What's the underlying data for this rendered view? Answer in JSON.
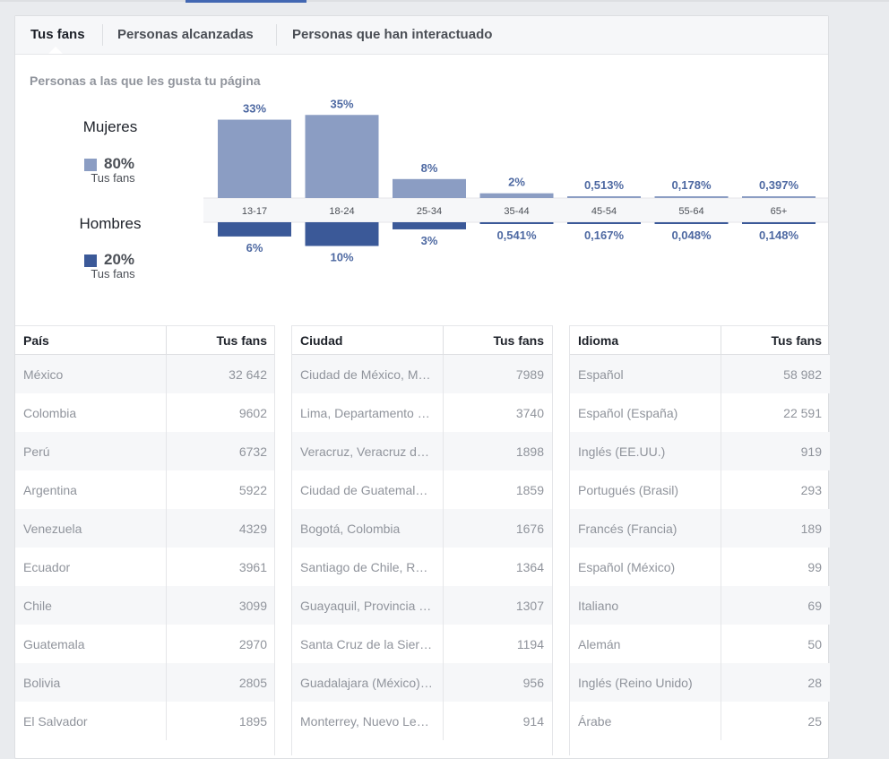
{
  "tabs": [
    {
      "label": "Tus fans"
    },
    {
      "label": "Personas alcanzadas"
    },
    {
      "label": "Personas que han interactuado"
    }
  ],
  "section_title": "Personas a las que les gusta tu página",
  "gender": {
    "women": {
      "label": "Mujeres",
      "percent": "80%",
      "sub": "Tus fans",
      "color": "#8b9dc3"
    },
    "men": {
      "label": "Hombres",
      "percent": "20%",
      "sub": "Tus fans",
      "color": "#3b5998"
    }
  },
  "chart_data": {
    "type": "bar",
    "categories": [
      "13-17",
      "18-24",
      "25-34",
      "35-44",
      "45-54",
      "55-64",
      "65+"
    ],
    "series": [
      {
        "name": "Mujeres",
        "values": [
          33,
          35,
          8,
          2,
          0.513,
          0.178,
          0.397
        ],
        "labels": [
          "33%",
          "35%",
          "8%",
          "2%",
          "0,513%",
          "0,178%",
          "0,397%"
        ],
        "color": "#8b9dc3"
      },
      {
        "name": "Hombres",
        "values": [
          6,
          10,
          3,
          0.541,
          0.167,
          0.048,
          0.148
        ],
        "labels": [
          "6%",
          "10%",
          "3%",
          "0,541%",
          "0,167%",
          "0,048%",
          "0,148%"
        ],
        "color": "#3b5998"
      }
    ]
  },
  "tables": [
    {
      "col1": "País",
      "col2": "Tus fans",
      "rows": [
        [
          "México",
          "32 642"
        ],
        [
          "Colombia",
          "9602"
        ],
        [
          "Perú",
          "6732"
        ],
        [
          "Argentina",
          "5922"
        ],
        [
          "Venezuela",
          "4329"
        ],
        [
          "Ecuador",
          "3961"
        ],
        [
          "Chile",
          "3099"
        ],
        [
          "Guatemala",
          "2970"
        ],
        [
          "Bolivia",
          "2805"
        ],
        [
          "El Salvador",
          "1895"
        ]
      ]
    },
    {
      "col1": "Ciudad",
      "col2": "Tus fans",
      "rows": [
        [
          "Ciudad de México, Mé…",
          "7989"
        ],
        [
          "Lima, Departamento de…",
          "3740"
        ],
        [
          "Veracruz, Veracruz de I…",
          "1898"
        ],
        [
          "Ciudad de Guatemala, …",
          "1859"
        ],
        [
          "Bogotá, Colombia",
          "1676"
        ],
        [
          "Santiago de Chile, Reg…",
          "1364"
        ],
        [
          "Guayaquil, Provincia d…",
          "1307"
        ],
        [
          "Santa Cruz de la Sierra…",
          "1194"
        ],
        [
          "Guadalajara (México), …",
          "956"
        ],
        [
          "Monterrey, Nuevo León…",
          "914"
        ]
      ]
    },
    {
      "col1": "Idioma",
      "col2": "Tus fans",
      "rows": [
        [
          "Español",
          "58 982"
        ],
        [
          "Español (España)",
          "22 591"
        ],
        [
          "Inglés (EE.UU.)",
          "919"
        ],
        [
          "Portugués (Brasil)",
          "293"
        ],
        [
          "Francés (Francia)",
          "189"
        ],
        [
          "Español (México)",
          "99"
        ],
        [
          "Italiano",
          "69"
        ],
        [
          "Alemán",
          "50"
        ],
        [
          "Inglés (Reino Unido)",
          "28"
        ],
        [
          "Árabe",
          "25"
        ]
      ]
    }
  ]
}
